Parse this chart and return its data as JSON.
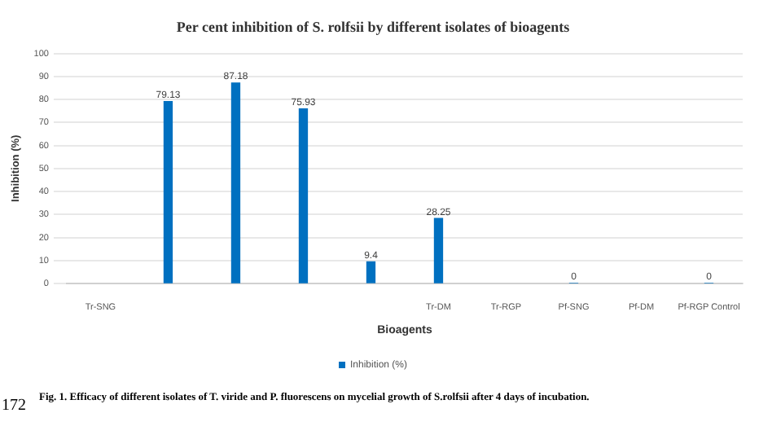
{
  "chart_data": {
    "type": "bar",
    "title": "Per cent inhibition of S. rolfsii by different isolates of bioagents",
    "xlabel": "Bioagents",
    "ylabel": "Inhibition (%)",
    "categories": [
      "Tr-SNG",
      null,
      null,
      null,
      null,
      "Tr-DM",
      "Tr-RGP",
      "Pf-SNG",
      "Pf-DM",
      "Pf-RGP Control"
    ],
    "series": [
      {
        "name": "Inhibition (%)",
        "color": "#0070c0",
        "values": [
          null,
          79.13,
          87.18,
          75.93,
          9.4,
          28.25,
          null,
          0,
          null,
          0
        ]
      }
    ],
    "ylim": [
      0,
      100
    ],
    "yticks": [
      0,
      10,
      20,
      30,
      40,
      50,
      60,
      70,
      80,
      90,
      100
    ],
    "grid": "y",
    "legend": "bottom",
    "data_labels": true,
    "annotations": [
      "Fig. 1. Efficacy of different isolates of T. viride and P. fluorescens on mycelial growth of S.rolfsii after 4 days of incubation.",
      "172"
    ]
  }
}
